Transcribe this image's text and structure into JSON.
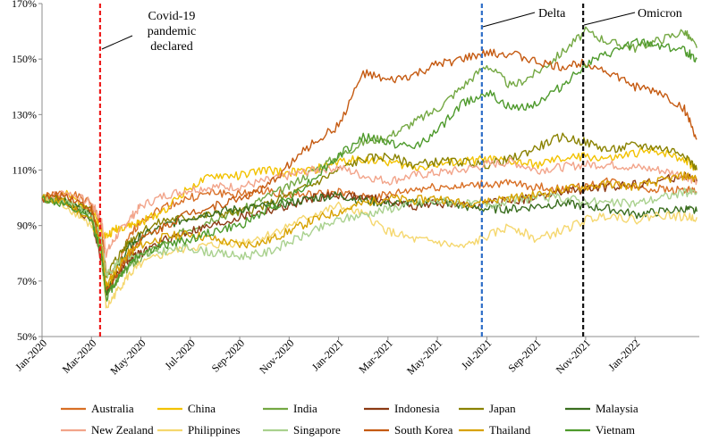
{
  "chart_data": {
    "type": "line",
    "title": "",
    "xlabel": "",
    "ylabel": "",
    "ylim": [
      50,
      170
    ],
    "y_ticks": [
      "50%",
      "70%",
      "90%",
      "110%",
      "130%",
      "150%",
      "170%"
    ],
    "y_tick_values": [
      50,
      70,
      90,
      110,
      130,
      150,
      170
    ],
    "x_start": "Jan-2020",
    "x_end": "Mar-2022",
    "xlim_months": [
      0,
      26.6
    ],
    "x_ticks": [
      "Jan-2020",
      "Mar-2020",
      "May-2020",
      "Jul-2020",
      "Sep-2020",
      "Nov-2020",
      "Jan-2021",
      "Mar-2021",
      "May-2021",
      "Jul-2021",
      "Sep-2021",
      "Nov-2021",
      "Jan-2022"
    ],
    "x_tick_values": [
      0,
      2,
      4,
      6,
      8,
      10,
      12,
      14,
      16,
      18,
      20,
      22,
      24
    ],
    "x_unit": "months since Jan-2020",
    "grid": false,
    "legend_position": "bottom",
    "events": [
      {
        "label_lines": [
          "Covid-19",
          "pandemic",
          "declared"
        ],
        "x": 2.35,
        "color": "#ee1c1c"
      },
      {
        "label_lines": [
          "Delta"
        ],
        "x": 17.8,
        "color": "#2e6ec8"
      },
      {
        "label_lines": [
          "Omicron"
        ],
        "x": 21.9,
        "color": "#111111"
      }
    ],
    "series": [
      {
        "name": "Australia",
        "color": "#d86f25",
        "x": [
          0,
          1,
          2,
          2.4,
          2.6,
          3,
          3.5,
          4,
          5,
          6,
          7,
          8,
          9,
          10,
          11,
          12,
          13,
          14,
          15,
          16,
          17,
          18,
          19,
          20,
          21,
          22,
          23,
          24,
          25,
          26,
          26.5
        ],
        "values": [
          100,
          102,
          98,
          90,
          72,
          75,
          85,
          92,
          97,
          100,
          102,
          101,
          103,
          101,
          101,
          102,
          100,
          101,
          103,
          104,
          104,
          105,
          105,
          104,
          103,
          104,
          106,
          104,
          103,
          103,
          102
        ]
      },
      {
        "name": "China",
        "color": "#f2c200",
        "x": [
          0,
          1,
          2,
          2.4,
          2.6,
          3,
          3.5,
          4,
          5,
          6,
          7,
          8,
          9,
          10,
          11,
          12,
          13,
          14,
          15,
          16,
          17,
          18,
          19,
          20,
          21,
          22,
          23,
          24,
          25,
          26,
          26.5
        ],
        "values": [
          100,
          101,
          96,
          88,
          86,
          89,
          90,
          91,
          96,
          104,
          108,
          108,
          110,
          109,
          110,
          113,
          114,
          113,
          111,
          112,
          113,
          114,
          113,
          112,
          114,
          115,
          114,
          116,
          117,
          114,
          110
        ]
      },
      {
        "name": "India",
        "color": "#74a843",
        "x": [
          0,
          1,
          2,
          2.4,
          2.6,
          3,
          3.5,
          4,
          5,
          6,
          7,
          8,
          9,
          10,
          11,
          12,
          13,
          14,
          15,
          16,
          17,
          18,
          19,
          20,
          21,
          22,
          23,
          24,
          25,
          26,
          26.5
        ],
        "values": [
          100,
          98,
          94,
          80,
          66,
          70,
          75,
          78,
          84,
          89,
          93,
          95,
          100,
          104,
          110,
          115,
          120,
          122,
          127,
          132,
          140,
          148,
          140,
          145,
          152,
          160,
          156,
          154,
          157,
          160,
          154
        ]
      },
      {
        "name": "Indonesia",
        "color": "#8b3a13",
        "x": [
          0,
          1,
          2,
          2.4,
          2.6,
          3,
          3.5,
          4,
          5,
          6,
          7,
          8,
          9,
          10,
          11,
          12,
          13,
          14,
          15,
          16,
          17,
          18,
          19,
          20,
          21,
          22,
          23,
          24,
          25,
          26,
          26.5
        ],
        "values": [
          100,
          98,
          92,
          78,
          66,
          72,
          78,
          80,
          85,
          88,
          90,
          93,
          95,
          97,
          100,
          101,
          100,
          99,
          97,
          98,
          97,
          98,
          99,
          100,
          102,
          103,
          104,
          105,
          106,
          108,
          106
        ]
      },
      {
        "name": "Japan",
        "color": "#8a8200",
        "x": [
          0,
          1,
          2,
          2.4,
          2.6,
          3,
          3.5,
          4,
          5,
          6,
          7,
          8,
          9,
          10,
          11,
          12,
          13,
          14,
          15,
          16,
          17,
          18,
          19,
          20,
          21,
          22,
          23,
          24,
          25,
          26,
          26.5
        ],
        "values": [
          100,
          99,
          95,
          84,
          72,
          78,
          84,
          88,
          92,
          93,
          94,
          95,
          97,
          101,
          105,
          110,
          114,
          115,
          112,
          113,
          113,
          112,
          114,
          118,
          122,
          120,
          117,
          119,
          118,
          116,
          110
        ]
      },
      {
        "name": "Malaysia",
        "color": "#3a6e1f",
        "x": [
          0,
          1,
          2,
          2.4,
          2.6,
          3,
          3.5,
          4,
          5,
          6,
          7,
          8,
          9,
          10,
          11,
          12,
          13,
          14,
          15,
          16,
          17,
          18,
          19,
          20,
          21,
          22,
          23,
          24,
          25,
          26,
          26.5
        ],
        "values": [
          100,
          98,
          94,
          82,
          66,
          74,
          82,
          86,
          90,
          93,
          95,
          96,
          97,
          98,
          100,
          101,
          99,
          98,
          98,
          99,
          97,
          96,
          96,
          97,
          98,
          97,
          96,
          94,
          95,
          96,
          95
        ]
      },
      {
        "name": "New Zealand",
        "color": "#f2a48a",
        "x": [
          0,
          1,
          2,
          2.4,
          2.6,
          3,
          3.5,
          4,
          5,
          6,
          7,
          8,
          9,
          10,
          11,
          12,
          13,
          14,
          15,
          16,
          17,
          18,
          19,
          20,
          21,
          22,
          23,
          24,
          25,
          26,
          26.5
        ],
        "values": [
          100,
          102,
          98,
          92,
          80,
          86,
          92,
          97,
          101,
          103,
          104,
          104,
          106,
          108,
          110,
          111,
          108,
          106,
          108,
          109,
          110,
          112,
          113,
          110,
          111,
          112,
          112,
          111,
          110,
          108,
          106
        ]
      },
      {
        "name": "Philippines",
        "color": "#f5d76e",
        "x": [
          0,
          1,
          2,
          2.4,
          2.6,
          3,
          3.5,
          4,
          5,
          6,
          7,
          8,
          9,
          10,
          11,
          12,
          13,
          14,
          15,
          16,
          17,
          18,
          19,
          20,
          21,
          22,
          23,
          24,
          25,
          26,
          26.5
        ],
        "values": [
          100,
          97,
          90,
          80,
          60,
          66,
          72,
          76,
          80,
          82,
          83,
          84,
          86,
          90,
          94,
          97,
          94,
          88,
          85,
          84,
          82,
          86,
          90,
          85,
          88,
          92,
          94,
          92,
          94,
          93,
          93
        ]
      },
      {
        "name": "Singapore",
        "color": "#a9d18e",
        "x": [
          0,
          1,
          2,
          2.4,
          2.6,
          3,
          3.5,
          4,
          5,
          6,
          7,
          8,
          9,
          10,
          11,
          12,
          13,
          14,
          15,
          16,
          17,
          18,
          19,
          20,
          21,
          22,
          23,
          24,
          25,
          26,
          26.5
        ],
        "values": [
          100,
          98,
          93,
          85,
          72,
          76,
          79,
          79,
          81,
          82,
          80,
          79,
          80,
          84,
          88,
          92,
          94,
          96,
          98,
          99,
          98,
          97,
          99,
          100,
          100,
          99,
          98,
          98,
          100,
          102,
          102
        ]
      },
      {
        "name": "South Korea",
        "color": "#c55a11",
        "x": [
          0,
          1,
          2,
          2.4,
          2.6,
          3,
          3.5,
          4,
          5,
          6,
          7,
          8,
          9,
          10,
          11,
          12,
          13,
          14,
          15,
          16,
          17,
          18,
          19,
          20,
          21,
          22,
          23,
          24,
          25,
          26,
          26.5
        ],
        "values": [
          100,
          101,
          96,
          82,
          66,
          72,
          80,
          85,
          90,
          95,
          97,
          100,
          103,
          112,
          120,
          126,
          145,
          142,
          144,
          148,
          150,
          152,
          152,
          149,
          147,
          149,
          145,
          140,
          138,
          132,
          121
        ]
      },
      {
        "name": "Thailand",
        "color": "#d8a200",
        "x": [
          0,
          1,
          2,
          2.4,
          2.6,
          3,
          3.5,
          4,
          5,
          6,
          7,
          8,
          9,
          10,
          11,
          12,
          13,
          14,
          15,
          16,
          17,
          18,
          19,
          20,
          21,
          22,
          23,
          24,
          25,
          26,
          26.5
        ],
        "values": [
          100,
          98,
          92,
          82,
          68,
          74,
          80,
          83,
          86,
          87,
          85,
          83,
          84,
          88,
          92,
          95,
          98,
          100,
          99,
          100,
          98,
          99,
          100,
          101,
          103,
          104,
          105,
          104,
          106,
          108,
          107
        ]
      },
      {
        "name": "Vietnam",
        "color": "#4e9a2c",
        "x": [
          0,
          1,
          2,
          2.4,
          2.6,
          3,
          3.5,
          4,
          5,
          6,
          7,
          8,
          9,
          10,
          11,
          12,
          13,
          14,
          15,
          16,
          17,
          18,
          19,
          20,
          21,
          22,
          23,
          24,
          25,
          26,
          26.5
        ],
        "values": [
          100,
          97,
          92,
          80,
          64,
          70,
          76,
          80,
          83,
          85,
          88,
          90,
          95,
          100,
          107,
          115,
          122,
          120,
          118,
          124,
          134,
          138,
          132,
          134,
          140,
          148,
          152,
          156,
          155,
          153,
          150
        ]
      }
    ]
  }
}
